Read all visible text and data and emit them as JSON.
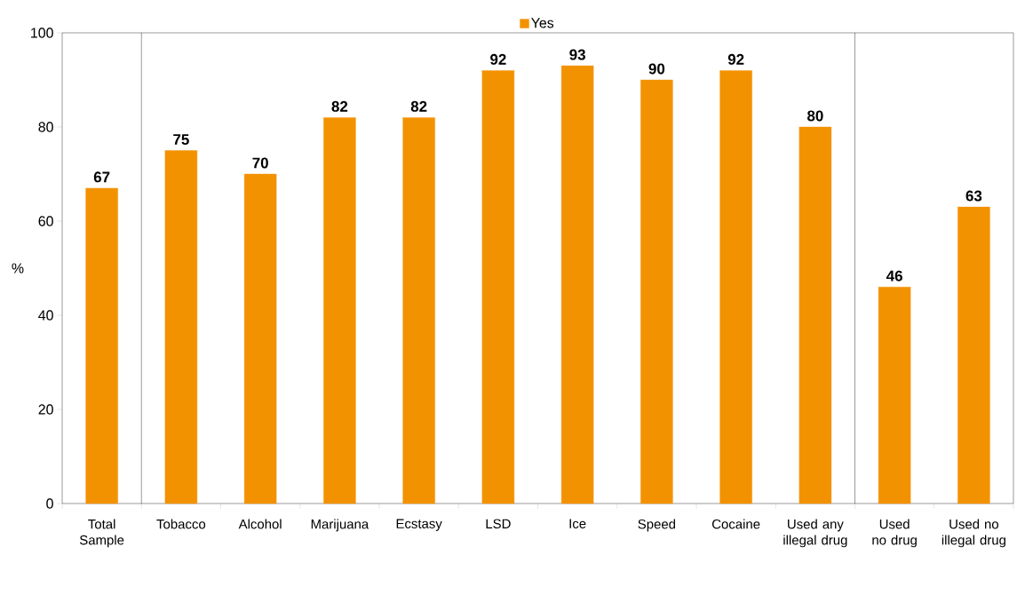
{
  "chart_data": {
    "type": "bar",
    "categories": [
      "Total Sample",
      "Tobacco",
      "Alcohol",
      "Marijuana",
      "Ecstasy",
      "LSD",
      "Ice",
      "Speed",
      "Cocaine",
      "Used any illegal drug",
      "Used no drug",
      "Used no illegal drug"
    ],
    "series": [
      {
        "name": "Yes",
        "color": "#f39200",
        "values": [
          67,
          75,
          70,
          82,
          82,
          92,
          93,
          90,
          92,
          80,
          46,
          63
        ]
      }
    ],
    "ylabel": "%",
    "ylim": [
      0,
      100
    ],
    "yticks": [
      0,
      20,
      40,
      60,
      80,
      100
    ],
    "data_labels": true,
    "legend": "top",
    "grid": false
  }
}
